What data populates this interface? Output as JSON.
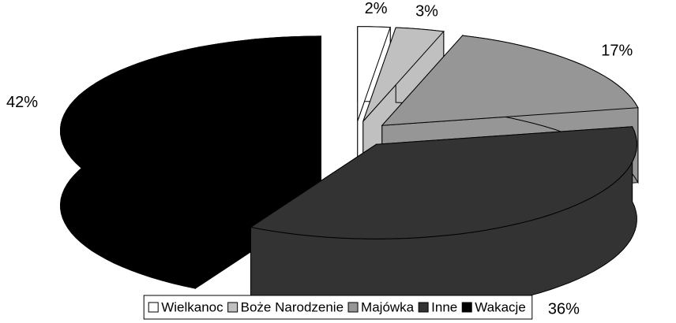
{
  "chart_data": {
    "type": "pie",
    "categories": [
      "Wielkanoc",
      "Boże Narodzenie",
      "Majówka",
      "Inne",
      "Wakacje"
    ],
    "values": [
      2,
      3,
      17,
      36,
      42
    ],
    "value_labels": [
      "2%",
      "3%",
      "17%",
      "36%",
      "42%"
    ],
    "colors": [
      "#ffffff",
      "#c0c0c0",
      "#969696",
      "#333333",
      "#000000"
    ],
    "legend": "bottom"
  }
}
